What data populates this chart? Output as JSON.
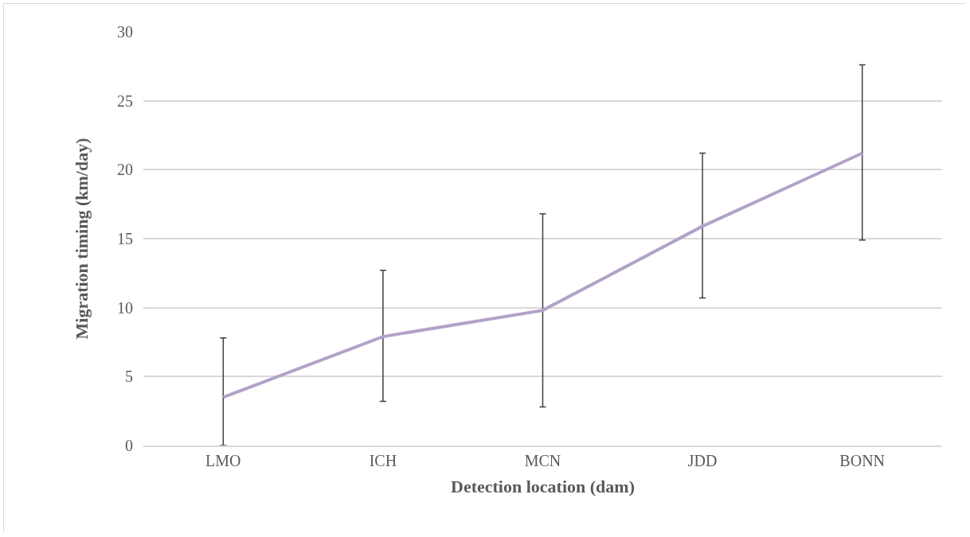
{
  "chart_data": {
    "type": "line",
    "xlabel": "Detection location (dam)",
    "ylabel": "Migration timing (km/day)",
    "categories": [
      "LMO",
      "ICH",
      "MCN",
      "JDD",
      "BONN"
    ],
    "series": [
      {
        "color": "#b3a2c7",
        "values": [
          3.5,
          7.9,
          9.8,
          15.9,
          21.2
        ],
        "errors": [
          [
            0,
            7.8
          ],
          [
            3.2,
            12.7
          ],
          [
            2.8,
            16.8
          ],
          [
            10.7,
            21.2
          ],
          [
            14.9,
            27.6
          ]
        ]
      }
    ],
    "ylim": [
      0,
      30
    ],
    "yticks": [
      0,
      5,
      10,
      15,
      20,
      25,
      30
    ],
    "grid": "y",
    "marker": "none",
    "line_style": "solid"
  }
}
